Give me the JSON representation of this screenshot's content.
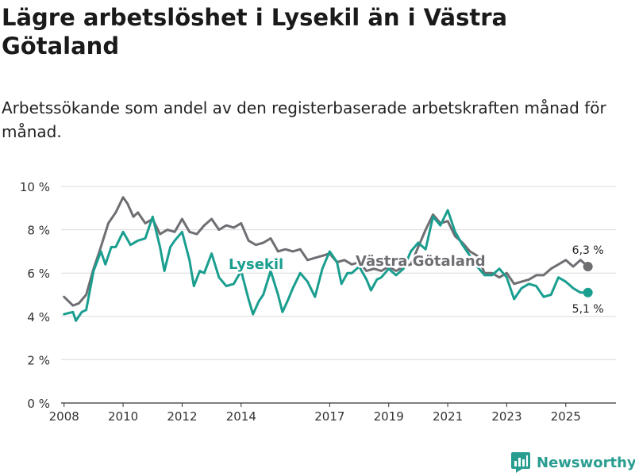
{
  "title": "Lägre arbetslöshet i Lysekil än i Västra Götaland",
  "subtitle": "Arbetssökande som andel av den registerbaserade arbetskraften månad för månad.",
  "brand": {
    "name": "Newsworthy",
    "icon": "newsworthy-logo-icon"
  },
  "colors": {
    "lysekil": "#1a9e8f",
    "vastra": "#6e6e73",
    "grid": "#d9d9d9",
    "axis": "#333333"
  },
  "chart_data": {
    "type": "line",
    "title": "Lägre arbetslöshet i Lysekil än i Västra Götaland",
    "xlabel": "",
    "ylabel": "",
    "ylim": [
      0,
      10
    ],
    "xlim": [
      2007.9,
      2026.7
    ],
    "grid": true,
    "y_ticks": [
      {
        "value": 0,
        "label": "0 %"
      },
      {
        "value": 2,
        "label": "2 %"
      },
      {
        "value": 4,
        "label": "4 %"
      },
      {
        "value": 6,
        "label": "6 %"
      },
      {
        "value": 8,
        "label": "8 %"
      },
      {
        "value": 10,
        "label": "10 %"
      }
    ],
    "x_ticks": [
      {
        "value": 2008,
        "label": "2008"
      },
      {
        "value": 2010,
        "label": "2010"
      },
      {
        "value": 2012,
        "label": "2012"
      },
      {
        "value": 2014,
        "label": "2014"
      },
      {
        "value": 2017,
        "label": "2017"
      },
      {
        "value": 2019,
        "label": "2019"
      },
      {
        "value": 2021,
        "label": "2021"
      },
      {
        "value": 2023,
        "label": "2023"
      },
      {
        "value": 2025,
        "label": "2025"
      }
    ],
    "series": [
      {
        "name": "Västra Götaland",
        "color": "#6e6e73",
        "end_label": "6,3 %",
        "points": [
          [
            2008.0,
            4.9
          ],
          [
            2008.3,
            4.5
          ],
          [
            2008.5,
            4.6
          ],
          [
            2008.75,
            5.0
          ],
          [
            2009.0,
            6.2
          ],
          [
            2009.2,
            7.0
          ],
          [
            2009.5,
            8.3
          ],
          [
            2009.75,
            8.8
          ],
          [
            2010.0,
            9.5
          ],
          [
            2010.15,
            9.2
          ],
          [
            2010.35,
            8.6
          ],
          [
            2010.5,
            8.8
          ],
          [
            2010.75,
            8.3
          ],
          [
            2011.0,
            8.5
          ],
          [
            2011.25,
            7.8
          ],
          [
            2011.5,
            8.0
          ],
          [
            2011.75,
            7.9
          ],
          [
            2012.0,
            8.5
          ],
          [
            2012.25,
            7.9
          ],
          [
            2012.5,
            7.8
          ],
          [
            2012.75,
            8.2
          ],
          [
            2013.0,
            8.5
          ],
          [
            2013.25,
            8.0
          ],
          [
            2013.5,
            8.2
          ],
          [
            2013.75,
            8.1
          ],
          [
            2014.0,
            8.3
          ],
          [
            2014.25,
            7.5
          ],
          [
            2014.5,
            7.3
          ],
          [
            2014.75,
            7.4
          ],
          [
            2015.0,
            7.6
          ],
          [
            2015.25,
            7.0
          ],
          [
            2015.5,
            7.1
          ],
          [
            2015.75,
            7.0
          ],
          [
            2016.0,
            7.1
          ],
          [
            2016.25,
            6.6
          ],
          [
            2016.5,
            6.7
          ],
          [
            2016.75,
            6.8
          ],
          [
            2017.0,
            6.9
          ],
          [
            2017.25,
            6.5
          ],
          [
            2017.5,
            6.6
          ],
          [
            2017.75,
            6.4
          ],
          [
            2018.0,
            6.5
          ],
          [
            2018.25,
            6.1
          ],
          [
            2018.5,
            6.2
          ],
          [
            2018.75,
            6.1
          ],
          [
            2019.0,
            6.3
          ],
          [
            2019.25,
            6.1
          ],
          [
            2019.5,
            6.3
          ],
          [
            2019.75,
            6.4
          ],
          [
            2020.0,
            7.2
          ],
          [
            2020.25,
            8.0
          ],
          [
            2020.5,
            8.7
          ],
          [
            2020.75,
            8.3
          ],
          [
            2021.0,
            8.4
          ],
          [
            2021.25,
            7.7
          ],
          [
            2021.5,
            7.4
          ],
          [
            2021.75,
            7.0
          ],
          [
            2022.0,
            6.8
          ],
          [
            2022.25,
            6.0
          ],
          [
            2022.5,
            6.0
          ],
          [
            2022.75,
            5.8
          ],
          [
            2023.0,
            6.0
          ],
          [
            2023.25,
            5.5
          ],
          [
            2023.5,
            5.6
          ],
          [
            2023.75,
            5.7
          ],
          [
            2024.0,
            5.9
          ],
          [
            2024.25,
            5.9
          ],
          [
            2024.5,
            6.2
          ],
          [
            2024.75,
            6.4
          ],
          [
            2025.0,
            6.6
          ],
          [
            2025.25,
            6.3
          ],
          [
            2025.5,
            6.6
          ],
          [
            2025.75,
            6.3
          ]
        ]
      },
      {
        "name": "Lysekil",
        "color": "#1a9e8f",
        "end_label": "5,1 %",
        "points": [
          [
            2008.0,
            4.1
          ],
          [
            2008.3,
            4.2
          ],
          [
            2008.4,
            3.8
          ],
          [
            2008.6,
            4.2
          ],
          [
            2008.75,
            4.3
          ],
          [
            2009.0,
            6.1
          ],
          [
            2009.25,
            7.0
          ],
          [
            2009.4,
            6.4
          ],
          [
            2009.6,
            7.2
          ],
          [
            2009.75,
            7.2
          ],
          [
            2010.0,
            7.9
          ],
          [
            2010.25,
            7.3
          ],
          [
            2010.5,
            7.5
          ],
          [
            2010.75,
            7.6
          ],
          [
            2011.0,
            8.6
          ],
          [
            2011.25,
            7.2
          ],
          [
            2011.4,
            6.1
          ],
          [
            2011.6,
            7.2
          ],
          [
            2011.75,
            7.5
          ],
          [
            2012.0,
            7.9
          ],
          [
            2012.25,
            6.6
          ],
          [
            2012.4,
            5.4
          ],
          [
            2012.6,
            6.1
          ],
          [
            2012.75,
            6.0
          ],
          [
            2013.0,
            6.9
          ],
          [
            2013.25,
            5.8
          ],
          [
            2013.5,
            5.4
          ],
          [
            2013.75,
            5.5
          ],
          [
            2014.0,
            6.1
          ],
          [
            2014.25,
            4.8
          ],
          [
            2014.4,
            4.1
          ],
          [
            2014.6,
            4.7
          ],
          [
            2014.75,
            5.0
          ],
          [
            2015.0,
            6.1
          ],
          [
            2015.25,
            5.0
          ],
          [
            2015.4,
            4.2
          ],
          [
            2015.6,
            4.8
          ],
          [
            2015.75,
            5.3
          ],
          [
            2016.0,
            6.0
          ],
          [
            2016.25,
            5.6
          ],
          [
            2016.5,
            4.9
          ],
          [
            2016.75,
            6.2
          ],
          [
            2017.0,
            7.0
          ],
          [
            2017.25,
            6.5
          ],
          [
            2017.4,
            5.5
          ],
          [
            2017.6,
            6.0
          ],
          [
            2017.75,
            6.0
          ],
          [
            2018.0,
            6.3
          ],
          [
            2018.25,
            5.7
          ],
          [
            2018.4,
            5.2
          ],
          [
            2018.6,
            5.7
          ],
          [
            2018.75,
            5.8
          ],
          [
            2019.0,
            6.2
          ],
          [
            2019.25,
            5.9
          ],
          [
            2019.5,
            6.2
          ],
          [
            2019.75,
            7.0
          ],
          [
            2020.0,
            7.4
          ],
          [
            2020.25,
            7.1
          ],
          [
            2020.5,
            8.6
          ],
          [
            2020.75,
            8.2
          ],
          [
            2021.0,
            8.9
          ],
          [
            2021.25,
            7.9
          ],
          [
            2021.5,
            7.3
          ],
          [
            2021.75,
            6.8
          ],
          [
            2022.0,
            6.3
          ],
          [
            2022.25,
            5.9
          ],
          [
            2022.5,
            5.9
          ],
          [
            2022.75,
            6.2
          ],
          [
            2023.0,
            5.8
          ],
          [
            2023.25,
            4.8
          ],
          [
            2023.5,
            5.3
          ],
          [
            2023.75,
            5.5
          ],
          [
            2024.0,
            5.4
          ],
          [
            2024.25,
            4.9
          ],
          [
            2024.5,
            5.0
          ],
          [
            2024.75,
            5.8
          ],
          [
            2025.0,
            5.6
          ],
          [
            2025.25,
            5.3
          ],
          [
            2025.5,
            5.1
          ],
          [
            2025.75,
            5.1
          ]
        ]
      }
    ],
    "annotations": [
      {
        "series": "Lysekil",
        "text": "Lysekil"
      },
      {
        "series": "Västra Götaland",
        "text": "Västra Götaland"
      }
    ]
  }
}
